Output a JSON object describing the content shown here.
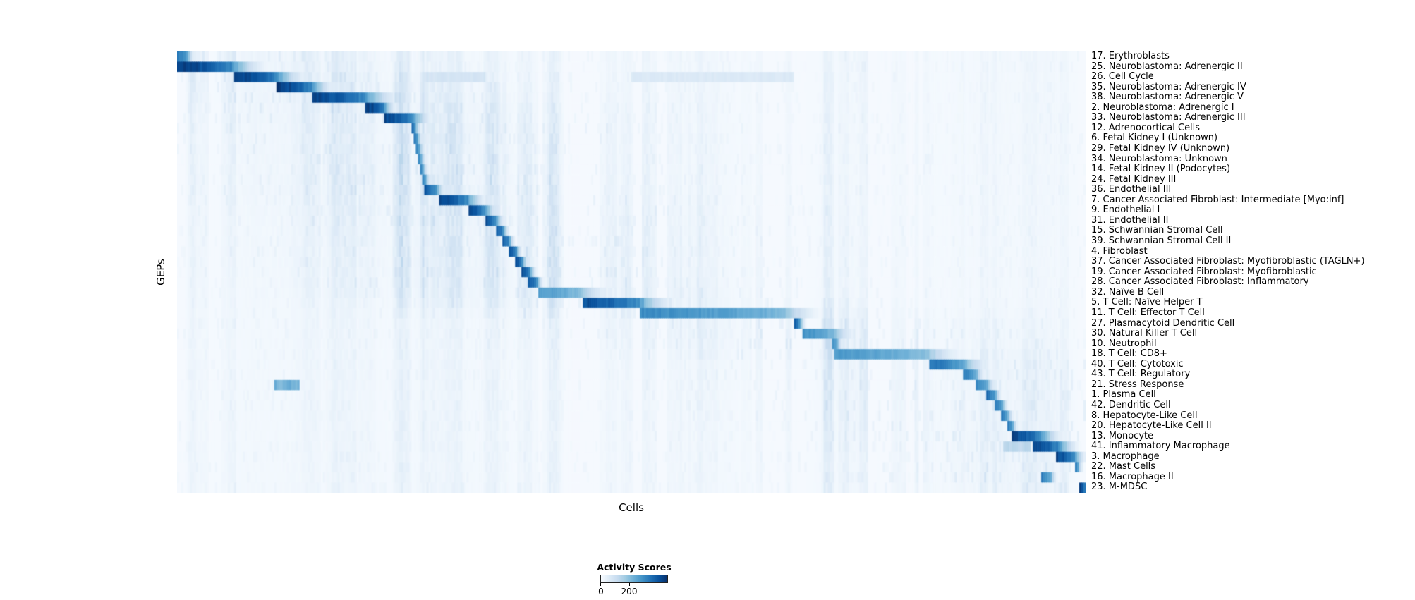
{
  "chart_data": {
    "type": "heatmap",
    "title": "",
    "xlabel": "Cells",
    "ylabel": "GEPs",
    "colormap": "Blues (white to dark navy)",
    "colormap_stops": [
      "#f7fbff",
      "#deebf7",
      "#c6dbef",
      "#9ecae1",
      "#6baed6",
      "#4292c6",
      "#2171b5",
      "#08519c",
      "#08306b"
    ],
    "value_range": [
      0,
      200
    ],
    "display_vmax": 260,
    "n_geps": 43,
    "colorbar": {
      "title": "Activity Scores",
      "ticks": [
        0,
        200
      ],
      "tick_labels": [
        "0",
        "200"
      ],
      "tick_max_position": 0.43
    },
    "texture": {
      "seed": 20061,
      "columns": 430,
      "base": 0.012,
      "random_streaks": 70,
      "streak_clusters": [
        {
          "x": 0.085,
          "w": 0.05,
          "v": 0.06
        },
        {
          "x": 0.135,
          "w": 0.04,
          "v": 0.05
        },
        {
          "x": 0.205,
          "w": 0.05,
          "v": 0.06
        },
        {
          "x": 0.3,
          "w": 0.07,
          "v": 0.07
        },
        {
          "x": 0.355,
          "w": 0.03,
          "v": 0.05
        },
        {
          "x": 0.6,
          "w": 0.025,
          "v": 0.05
        },
        {
          "x": 0.72,
          "w": 0.03,
          "v": 0.04
        },
        {
          "x": 0.9,
          "w": 0.06,
          "v": 0.07
        },
        {
          "x": 0.955,
          "w": 0.035,
          "v": 0.08
        }
      ]
    },
    "rows": [
      {
        "label": "17. Erythroblasts",
        "band": [
          0.0,
          0.012
        ],
        "peak": 200
      },
      {
        "label": "25. Neuroblastoma: Adrenergic II",
        "band": [
          0.0,
          0.06
        ],
        "peak": 260
      },
      {
        "label": "26. Cell Cycle",
        "band": [
          0.062,
          0.11
        ],
        "peak": 260,
        "extra": [
          [
            0.27,
            0.34,
            50
          ],
          [
            0.5,
            0.68,
            40
          ]
        ]
      },
      {
        "label": "35. Neuroblastoma: Adrenergic IV",
        "band": [
          0.11,
          0.148
        ],
        "peak": 260
      },
      {
        "label": "38. Neuroblastoma: Adrenergic V",
        "band": [
          0.148,
          0.208
        ],
        "peak": 250
      },
      {
        "label": "2. Neuroblastoma: Adrenergic I",
        "band": [
          0.208,
          0.228
        ],
        "peak": 260
      },
      {
        "label": "33. Neuroblastoma: Adrenergic III",
        "band": [
          0.228,
          0.26
        ],
        "peak": 250
      },
      {
        "label": "12. Adrenocortical Cells",
        "band": [
          0.259,
          0.263
        ],
        "peak": 210
      },
      {
        "label": "6. Fetal Kidney I (Unknown)",
        "band": [
          0.261,
          0.265
        ],
        "peak": 200
      },
      {
        "label": "29. Fetal Kidney IV (Unknown)",
        "band": [
          0.263,
          0.267
        ],
        "peak": 195
      },
      {
        "label": "34. Neuroblastoma: Unknown",
        "band": [
          0.265,
          0.269
        ],
        "peak": 190
      },
      {
        "label": "14. Fetal Kidney II (Podocytes)",
        "band": [
          0.267,
          0.271
        ],
        "peak": 200
      },
      {
        "label": "24. Fetal Kidney III",
        "band": [
          0.269,
          0.274
        ],
        "peak": 200
      },
      {
        "label": "36. Endothelial III",
        "band": [
          0.272,
          0.286
        ],
        "peak": 230
      },
      {
        "label": "7. Cancer Associated Fibroblast: Intermediate [Myo:inf]",
        "band": [
          0.288,
          0.32
        ],
        "peak": 250
      },
      {
        "label": "9. Endothelial I",
        "band": [
          0.32,
          0.34
        ],
        "peak": 245
      },
      {
        "label": "31. Endothelial II",
        "band": [
          0.339,
          0.352
        ],
        "peak": 240
      },
      {
        "label": "15. Schwannian Stromal Cell",
        "band": [
          0.351,
          0.36
        ],
        "peak": 230
      },
      {
        "label": "39. Schwannian Stromal Cell II",
        "band": [
          0.358,
          0.366
        ],
        "peak": 230
      },
      {
        "label": "4. Fibroblast",
        "band": [
          0.364,
          0.374
        ],
        "peak": 240
      },
      {
        "label": "37. Cancer Associated Fibroblast: Myofibroblastic (TAGLN+)",
        "band": [
          0.372,
          0.381
        ],
        "peak": 240
      },
      {
        "label": "19. Cancer Associated Fibroblast: Myofibroblastic",
        "band": [
          0.379,
          0.389
        ],
        "peak": 240
      },
      {
        "label": "28. Cancer Associated Fibroblast: Inflammatory",
        "band": [
          0.387,
          0.397
        ],
        "peak": 230
      },
      {
        "label": "32. Naïve B Cell",
        "band": [
          0.397,
          0.446
        ],
        "peak": 160
      },
      {
        "label": "5. T Cell: Naïve Helper T",
        "band": [
          0.446,
          0.51
        ],
        "peak": 240
      },
      {
        "label": "11. T Cell: Effector T Cell",
        "band": [
          0.51,
          0.67
        ],
        "peak": 175
      },
      {
        "label": "27. Plasmacytoid Dendritic Cell",
        "band": [
          0.68,
          0.686
        ],
        "peak": 220
      },
      {
        "label": "30. Natural Killer T Cell",
        "band": [
          0.688,
          0.724
        ],
        "peak": 170
      },
      {
        "label": "10. Neutrophil",
        "band": [
          0.72,
          0.727
        ],
        "peak": 180
      },
      {
        "label": "18. T Cell: CD8+",
        "band": [
          0.724,
          0.828
        ],
        "peak": 160
      },
      {
        "label": "40. T Cell: Cytotoxic",
        "band": [
          0.828,
          0.868
        ],
        "peak": 200
      },
      {
        "label": "43. T Cell: Regulatory",
        "band": [
          0.866,
          0.88
        ],
        "peak": 195
      },
      {
        "label": "21. Stress Response",
        "band": [
          0.878,
          0.893
        ],
        "peak": 185,
        "extra": [
          [
            0.108,
            0.135,
            140
          ]
        ]
      },
      {
        "label": "1. Plasma Cell",
        "band": [
          0.891,
          0.901
        ],
        "peak": 210
      },
      {
        "label": "42. Dendritic Cell",
        "band": [
          0.899,
          0.909
        ],
        "peak": 200
      },
      {
        "label": "8. Hepatocyte-Like Cell",
        "band": [
          0.907,
          0.915
        ],
        "peak": 195
      },
      {
        "label": "20. Hepatocyte-Like Cell II",
        "band": [
          0.913,
          0.92
        ],
        "peak": 195
      },
      {
        "label": "13. Monocyte",
        "band": [
          0.918,
          0.952
        ],
        "peak": 250
      },
      {
        "label": "41. Inflammatory Macrophage",
        "band": [
          0.942,
          0.972
        ],
        "peak": 250,
        "extra": [
          [
            0.91,
            0.94,
            80
          ]
        ]
      },
      {
        "label": "3. Macrophage",
        "band": [
          0.968,
          0.988
        ],
        "peak": 250
      },
      {
        "label": "22. Mast Cells",
        "band": [
          0.988,
          0.992
        ],
        "peak": 200
      },
      {
        "label": "16. Macrophage II",
        "band": [
          0.952,
          0.962
        ],
        "peak": 190
      },
      {
        "label": "23. M-MDSC",
        "band": [
          0.994,
          1.0
        ],
        "peak": 250
      }
    ]
  }
}
